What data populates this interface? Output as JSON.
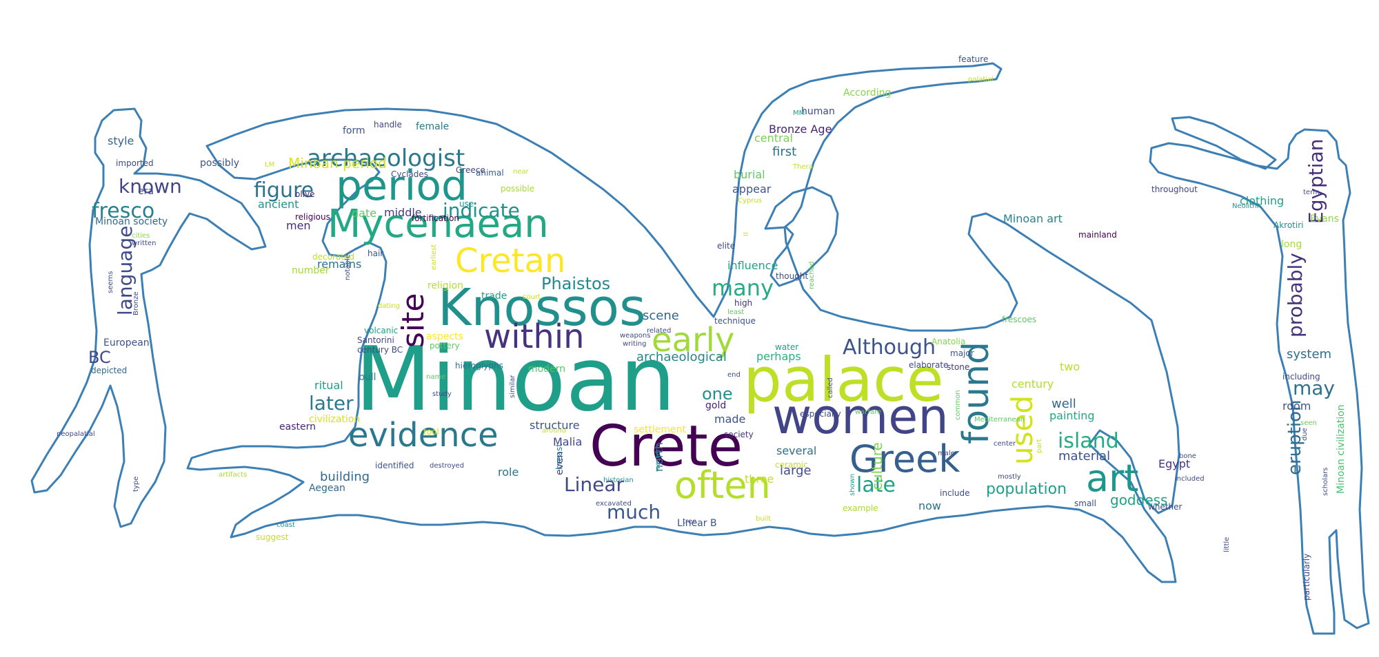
{
  "palette": {
    "outline": "#3b7fb5",
    "background": "#ffffff"
  },
  "word_cloud": {
    "words": [
      {
        "t": "Minoan",
        "c": "#1f9e89"
      },
      {
        "t": "palace",
        "c": "#bddf26"
      },
      {
        "t": "Crete",
        "c": "#440154"
      },
      {
        "t": "women",
        "c": "#414487"
      },
      {
        "t": "Knossos",
        "c": "#21908d"
      },
      {
        "t": "period",
        "c": "#1f968b"
      },
      {
        "t": "Mycenaean",
        "c": "#22a884"
      },
      {
        "t": "found",
        "c": "#2a788e"
      },
      {
        "t": "evidence",
        "c": "#2a788e"
      },
      {
        "t": "often",
        "c": "#b5de2b"
      },
      {
        "t": "Greek",
        "c": "#355f8d"
      },
      {
        "t": "within",
        "c": "#46327e"
      },
      {
        "t": "Cretan",
        "c": "#fde725"
      },
      {
        "t": "art",
        "c": "#1f968b"
      },
      {
        "t": "early",
        "c": "#a0da39"
      },
      {
        "t": "site",
        "c": "#440154"
      },
      {
        "t": "used",
        "c": "#d2e21b"
      },
      {
        "t": "archaeologist",
        "c": "#2a788e"
      },
      {
        "t": "Although",
        "c": "#3b528b"
      },
      {
        "t": "Egyptian",
        "c": "#472d7b"
      },
      {
        "t": "indicate",
        "c": "#21918c"
      },
      {
        "t": "Linear",
        "c": "#3e4a89"
      },
      {
        "t": "late",
        "c": "#1fa187"
      },
      {
        "t": "island",
        "c": "#25ab82"
      },
      {
        "t": "figure",
        "c": "#2c728e"
      },
      {
        "t": "fresco",
        "c": "#26828e"
      },
      {
        "t": "known",
        "c": "#414487"
      },
      {
        "t": "many",
        "c": "#25ac82"
      },
      {
        "t": "language",
        "c": "#3e4989"
      },
      {
        "t": "later",
        "c": "#2a788e"
      },
      {
        "t": "probably",
        "c": "#46337e"
      },
      {
        "t": "may",
        "c": "#2c728e"
      },
      {
        "t": "eruption",
        "c": "#2e6e8e"
      },
      {
        "t": "much",
        "c": "#39558c"
      },
      {
        "t": "culture",
        "c": "#7fd34e"
      },
      {
        "t": "Phaistos",
        "c": "#24878e"
      },
      {
        "t": "population",
        "c": "#1f9f88"
      },
      {
        "t": "one",
        "c": "#21918c"
      },
      {
        "t": "Minoan period",
        "c": "#dae319"
      },
      {
        "t": "BC",
        "c": "#3e4a89"
      },
      {
        "t": "scene",
        "c": "#31668e"
      },
      {
        "t": "goddess",
        "c": "#1fa188"
      },
      {
        "t": "material",
        "c": "#3b528b"
      },
      {
        "t": "well",
        "c": "#31688e"
      },
      {
        "t": "building",
        "c": "#31688e"
      },
      {
        "t": "archaeological",
        "c": "#25848e"
      },
      {
        "t": "Malia",
        "c": "#3f4788"
      },
      {
        "t": "made",
        "c": "#3b528b"
      },
      {
        "t": "Egypt",
        "c": "#46327e"
      },
      {
        "t": "system",
        "c": "#2e6e8e"
      },
      {
        "t": "room",
        "c": "#3b528b"
      },
      {
        "t": "large",
        "c": "#3e4c8a"
      },
      {
        "t": "now",
        "c": "#2d708e"
      },
      {
        "t": "remains",
        "c": "#2c728e"
      },
      {
        "t": "role",
        "c": "#2c718e"
      },
      {
        "t": "north",
        "c": "#2a778e"
      },
      {
        "t": "ancient",
        "c": "#20938c"
      },
      {
        "t": "ritual",
        "c": "#1e9c89"
      },
      {
        "t": "clothing",
        "c": "#1f9f88"
      },
      {
        "t": "two",
        "c": "#b8de29"
      },
      {
        "t": "structure",
        "c": "#3b528b"
      },
      {
        "t": "perhaps",
        "c": "#29af7f"
      },
      {
        "t": "first",
        "c": "#2d708e"
      },
      {
        "t": "several",
        "c": "#2e6f8e"
      },
      {
        "t": "Minoan art",
        "c": "#26828e"
      },
      {
        "t": "style",
        "c": "#32648e"
      },
      {
        "t": "influence",
        "c": "#20a386"
      },
      {
        "t": "date",
        "c": "#5ec962"
      },
      {
        "t": "painting",
        "c": "#22a785"
      },
      {
        "t": "century",
        "c": "#b0dd2f"
      },
      {
        "t": "Bronze Age",
        "c": "#482374"
      },
      {
        "t": "appear",
        "c": "#39568c"
      },
      {
        "t": "three",
        "c": "#c2df23"
      },
      {
        "t": "middle",
        "c": "#443a83"
      },
      {
        "t": "burial",
        "c": "#5ec962"
      },
      {
        "t": "central",
        "c": "#7ad151"
      },
      {
        "t": "men",
        "c": "#472c7a"
      },
      {
        "t": "gold",
        "c": "#481f70"
      },
      {
        "t": "form",
        "c": "#3b528b"
      },
      {
        "t": "female",
        "c": "#2a788e"
      },
      {
        "t": "Linear B",
        "c": "#3b528b"
      },
      {
        "t": "Aegean",
        "c": "#31688e"
      },
      {
        "t": "trade",
        "c": "#1fa088"
      },
      {
        "t": "even",
        "c": "#414487"
      },
      {
        "t": "possibly",
        "c": "#3b528b"
      },
      {
        "t": "eastern",
        "c": "#482475"
      },
      {
        "t": "civilization",
        "c": "#d8e219"
      },
      {
        "t": "breast",
        "c": "#2a788e"
      },
      {
        "t": "religion",
        "c": "#b5de2b"
      },
      {
        "t": "European",
        "c": "#3b528b"
      },
      {
        "t": "Minoan civilization",
        "c": "#4ac16d"
      },
      {
        "t": "modern",
        "c": "#54c568"
      },
      {
        "t": "settlement",
        "c": "#fde725"
      },
      {
        "t": "long",
        "c": "#a5db36"
      },
      {
        "t": "number",
        "c": "#a0da39"
      },
      {
        "t": "According",
        "c": "#86d549"
      },
      {
        "t": "bull",
        "c": "#2a788e"
      },
      {
        "t": "Evans",
        "c": "#8fd744"
      },
      {
        "t": "era",
        "c": "#3e4989"
      },
      {
        "t": "Minoan society",
        "c": "#31688e"
      },
      {
        "t": "human",
        "c": "#3e4989"
      },
      {
        "t": "including",
        "c": "#3e4989"
      },
      {
        "t": "society",
        "c": "#46327e"
      },
      {
        "t": "use",
        "c": "#20928c"
      },
      {
        "t": "feature",
        "c": "#3b528b"
      },
      {
        "t": "depicted",
        "c": "#31688e"
      },
      {
        "t": "elite",
        "c": "#3e4989"
      },
      {
        "t": "aspects",
        "c": "#fde725"
      },
      {
        "t": "animal",
        "c": "#355f8d"
      },
      {
        "t": "mainland",
        "c": "#440154"
      },
      {
        "t": "example",
        "c": "#a8db34"
      },
      {
        "t": "Anatolia",
        "c": "#84d44b"
      },
      {
        "t": "hieroglyphs",
        "c": "#2d708e"
      },
      {
        "t": "tool",
        "c": "#c8e020"
      },
      {
        "t": "identified",
        "c": "#3b528b"
      },
      {
        "t": "technique",
        "c": "#3b528b"
      },
      {
        "t": "decorated",
        "c": "#bddf26"
      },
      {
        "t": "ceramic",
        "c": "#c5e021"
      },
      {
        "t": "Akrotiri",
        "c": "#20928c"
      },
      {
        "t": "handle",
        "c": "#414487"
      },
      {
        "t": "high",
        "c": "#46337e"
      },
      {
        "t": "hair",
        "c": "#3b528b"
      },
      {
        "t": "fortification",
        "c": "#440154"
      },
      {
        "t": "stone",
        "c": "#443a83"
      },
      {
        "t": "include",
        "c": "#3e4989"
      },
      {
        "t": "frescoes",
        "c": "#5ec962"
      },
      {
        "t": "term",
        "c": "#3b528b"
      },
      {
        "t": "seen",
        "c": "#6ccd5a"
      },
      {
        "t": "small",
        "c": "#3e4989"
      },
      {
        "t": "major",
        "c": "#3b528b"
      },
      {
        "t": "whether",
        "c": "#3e4989"
      },
      {
        "t": "Cyclades",
        "c": "#3e4989"
      },
      {
        "t": "Greece",
        "c": "#3e4989"
      },
      {
        "t": "thought",
        "c": "#3e4989"
      },
      {
        "t": "throughout",
        "c": "#414487"
      },
      {
        "t": "written",
        "c": "#3e4989"
      },
      {
        "t": "religious",
        "c": "#440154"
      },
      {
        "t": "cities",
        "c": "#8fd744"
      },
      {
        "t": "olive",
        "c": "#482878"
      },
      {
        "t": "possible",
        "c": "#a8db34"
      },
      {
        "t": "Santorini",
        "c": "#3e4989"
      },
      {
        "t": "century BC",
        "c": "#3e4989"
      },
      {
        "t": "pottery",
        "c": "#5ec962"
      },
      {
        "t": "volcanic",
        "c": "#1f9e89"
      },
      {
        "t": "writing",
        "c": "#3e4989"
      },
      {
        "t": "related",
        "c": "#3e4989"
      },
      {
        "t": "water",
        "c": "#1f9e89"
      },
      {
        "t": "elaborate",
        "c": "#3e4989"
      },
      {
        "t": "especially",
        "c": "#3e4989"
      },
      {
        "t": "warfare",
        "c": "#5ec962"
      },
      {
        "t": "Mediterranean",
        "c": "#5ec962"
      },
      {
        "t": "included",
        "c": "#3e4989"
      },
      {
        "t": "mostly",
        "c": "#3e4989"
      },
      {
        "t": "historian",
        "c": "#20928c"
      },
      {
        "t": "destroyed",
        "c": "#3e4989"
      },
      {
        "t": "excavated",
        "c": "#3e4989"
      },
      {
        "t": "artifacts",
        "c": "#a8db34"
      },
      {
        "t": "suggest",
        "c": "#c8e020"
      },
      {
        "t": "coast",
        "c": "#20928c"
      },
      {
        "t": "tree",
        "c": "#3e4989"
      },
      {
        "t": "built",
        "c": "#c8e020"
      },
      {
        "t": "end",
        "c": "#3e4989"
      },
      {
        "t": "least",
        "c": "#5ec962"
      },
      {
        "t": "weapons",
        "c": "#3e4989"
      },
      {
        "t": "dating",
        "c": "#c8e020"
      },
      {
        "t": "earliest",
        "c": "#c8e020"
      },
      {
        "t": "near",
        "c": "#c8e020"
      },
      {
        "t": "LM",
        "c": "#c8e020"
      },
      {
        "t": "MM",
        "c": "#1f9e89"
      },
      {
        "t": "Thera",
        "c": "#c8e020"
      },
      {
        "t": "Cyprus",
        "c": "#c8e020"
      },
      {
        "t": "palatial",
        "c": "#c8e020"
      },
      {
        "t": "Neolithic",
        "c": "#20928c"
      },
      {
        "t": "bone",
        "c": "#3e4989"
      },
      {
        "t": "male",
        "c": "#414487"
      },
      {
        "t": "court",
        "c": "#c8e020"
      },
      {
        "t": "around",
        "c": "#c8e020"
      },
      {
        "t": "study",
        "c": "#3e4989"
      },
      {
        "t": "neopalatial",
        "c": "#3e4989"
      },
      {
        "t": "type",
        "c": "#3e4989"
      },
      {
        "t": "name",
        "c": "#5ec962"
      },
      {
        "t": "similar",
        "c": "#3e4989"
      },
      {
        "t": "Bronze",
        "c": "#3e4989"
      },
      {
        "t": "seems",
        "c": "#3e4989"
      },
      {
        "t": "notable",
        "c": "#3e4989"
      },
      {
        "t": "reached",
        "c": "#5ec962"
      },
      {
        "t": "II",
        "c": "#c8e020"
      },
      {
        "t": "western",
        "c": "#20928c"
      },
      {
        "t": "called",
        "c": "#3e4989"
      },
      {
        "t": "shown",
        "c": "#1f9e89"
      },
      {
        "t": "common",
        "c": "#5ec962"
      },
      {
        "t": "center",
        "c": "#3e4989"
      },
      {
        "t": "part",
        "c": "#c8e020"
      },
      {
        "t": "due",
        "c": "#3e4989"
      },
      {
        "t": "scholars",
        "c": "#3e4989"
      },
      {
        "t": "little",
        "c": "#3e4989"
      },
      {
        "t": "particularly",
        "c": "#3e4989"
      },
      {
        "t": "imported",
        "c": "#3e4989"
      },
      {
        "t": "around BC",
        "c": "#3e4989"
      },
      {
        "t": "villa",
        "c": "#5ec962"
      }
    ]
  }
}
